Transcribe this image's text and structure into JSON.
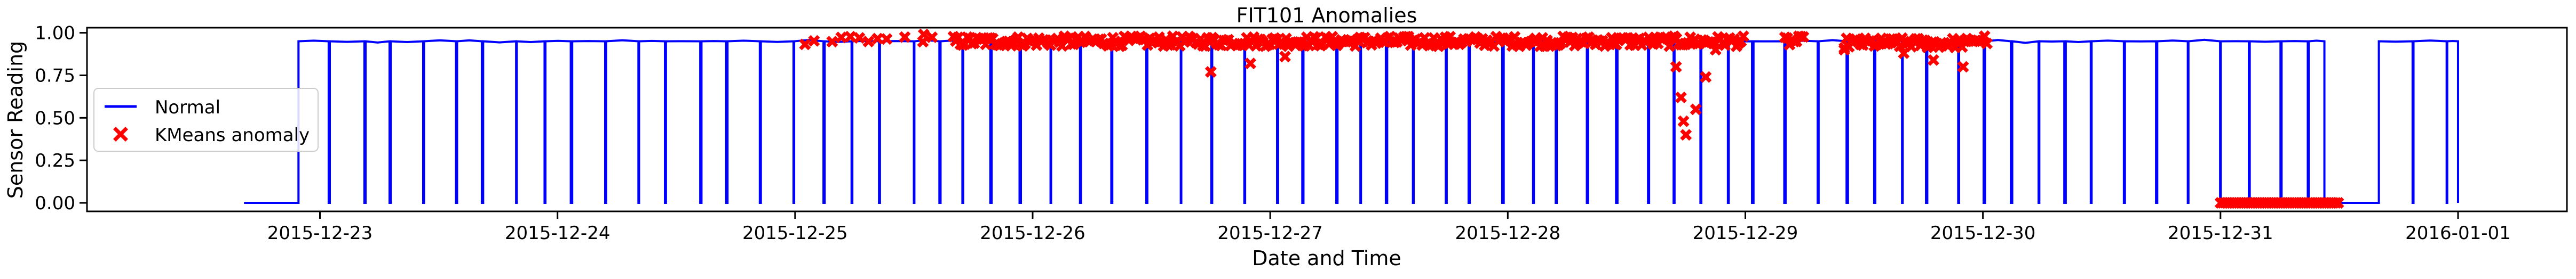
{
  "chart_data": {
    "type": "line",
    "title": "FIT101 Anomalies",
    "xlabel": "Date and Time",
    "ylabel": "Sensor Reading",
    "x_ticks": [
      "2015-12-23",
      "2015-12-24",
      "2015-12-25",
      "2015-12-26",
      "2015-12-27",
      "2015-12-28",
      "2015-12-29",
      "2015-12-30",
      "2015-12-31",
      "2016-01-01"
    ],
    "y_ticks": [
      "0.00",
      "0.25",
      "0.50",
      "0.75",
      "1.00"
    ],
    "xlim": [
      "2015-12-22 00:28",
      "2016-01-01 11:00"
    ],
    "ylim": [
      -0.05,
      1.03
    ],
    "grid": false,
    "legend_position": "center-left",
    "series": [
      {
        "name": "Normal",
        "kind": "line",
        "color": "#0000ff",
        "pattern": "pump cycling: reading alternates between ~0.95 (flowing) and 0.00 (stopped)",
        "high_value": 0.95,
        "low_value": 0.0,
        "active_start": "2015-12-22 16:20",
        "active_end": "2015-12-31 10:30",
        "gap_start": "2015-12-31 10:30",
        "gap_end": "2015-12-31 16:00",
        "resume_start": "2015-12-31 16:00",
        "end": "2016-01-01 00:00"
      },
      {
        "name": "KMeans anomaly",
        "kind": "scatter",
        "marker": "X",
        "color": "#ff0000",
        "groups": [
          {
            "start": "2015-12-25 01:00",
            "end": "2015-12-25 14:00",
            "value": 0.96,
            "sparse": true
          },
          {
            "start": "2015-12-25 16:00",
            "end": "2015-12-29 00:00",
            "value": 0.95
          },
          {
            "start": "2015-12-29 04:00",
            "end": "2015-12-29 06:00",
            "value": 0.95
          },
          {
            "start": "2015-12-29 10:00",
            "end": "2015-12-29 23:00",
            "value": 0.94
          },
          {
            "start": "2015-12-29 23:00",
            "end": "2015-12-30 00:30",
            "value": 0.96
          },
          {
            "start": "2015-12-31 00:00",
            "end": "2015-12-31 12:00",
            "value": 0.0
          }
        ],
        "outliers": [
          {
            "x": "2015-12-25 13:00",
            "y": 0.99
          },
          {
            "x": "2015-12-26 18:00",
            "y": 0.77
          },
          {
            "x": "2015-12-26 22:00",
            "y": 0.82
          },
          {
            "x": "2015-12-27 01:30",
            "y": 0.86
          },
          {
            "x": "2015-12-28 17:00",
            "y": 0.8
          },
          {
            "x": "2015-12-28 17:30",
            "y": 0.62
          },
          {
            "x": "2015-12-28 17:45",
            "y": 0.48
          },
          {
            "x": "2015-12-28 18:00",
            "y": 0.4
          },
          {
            "x": "2015-12-28 19:00",
            "y": 0.55
          },
          {
            "x": "2015-12-28 20:00",
            "y": 0.74
          },
          {
            "x": "2015-12-28 21:00",
            "y": 0.9
          },
          {
            "x": "2015-12-29 10:00",
            "y": 0.9
          },
          {
            "x": "2015-12-29 16:00",
            "y": 0.88
          },
          {
            "x": "2015-12-29 19:00",
            "y": 0.84
          },
          {
            "x": "2015-12-29 22:00",
            "y": 0.8
          }
        ]
      }
    ],
    "colors": {
      "normal": "#0000ff",
      "anomaly": "#ff0000",
      "axes": "#000000",
      "background": "#ffffff"
    }
  }
}
